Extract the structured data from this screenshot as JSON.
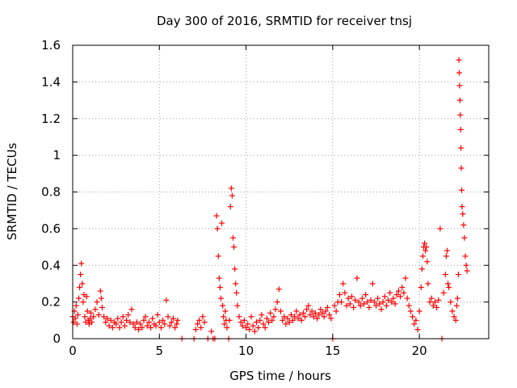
{
  "chart_data": {
    "type": "scatter",
    "title": "Day 300 of 2016, SRMTID for receiver tnsj",
    "xlabel": "GPS time / hours",
    "ylabel": "SRMTID / TECUs",
    "xlim": [
      0,
      24
    ],
    "ylim": [
      0,
      1.6
    ],
    "x_ticks": [
      0,
      5,
      10,
      15,
      20
    ],
    "x_tick_labels": [
      "0",
      "5",
      "10",
      "15",
      "20"
    ],
    "y_ticks": [
      0,
      0.2,
      0.4,
      0.6,
      0.8,
      1.0,
      1.2,
      1.4,
      1.6
    ],
    "y_tick_labels": [
      "0",
      "0.2",
      "0.4",
      "0.6",
      "0.8",
      "1",
      "1.2",
      "1.4",
      "1.6"
    ],
    "grid": true,
    "marker": "+",
    "color": "#ff0000",
    "series": [
      {
        "name": "SRMTID",
        "points": [
          [
            0.0,
            0.12
          ],
          [
            0.05,
            0.09
          ],
          [
            0.1,
            0.15
          ],
          [
            0.15,
            0.11
          ],
          [
            0.2,
            0.18
          ],
          [
            0.25,
            0.08
          ],
          [
            0.3,
            0.13
          ],
          [
            0.35,
            0.22
          ],
          [
            0.4,
            0.28
          ],
          [
            0.45,
            0.35
          ],
          [
            0.5,
            0.41
          ],
          [
            0.55,
            0.3
          ],
          [
            0.6,
            0.2
          ],
          [
            0.65,
            0.24
          ],
          [
            0.7,
            0.12
          ],
          [
            0.75,
            0.09
          ],
          [
            0.8,
            0.23
          ],
          [
            0.85,
            0.15
          ],
          [
            0.9,
            0.1
          ],
          [
            0.95,
            0.08
          ],
          [
            1.0,
            0.11
          ],
          [
            1.05,
            0.14
          ],
          [
            1.1,
            0.09
          ],
          [
            1.2,
            0.12
          ],
          [
            1.3,
            0.16
          ],
          [
            1.4,
            0.2
          ],
          [
            1.5,
            0.13
          ],
          [
            1.6,
            0.26
          ],
          [
            1.65,
            0.22
          ],
          [
            1.7,
            0.17
          ],
          [
            1.8,
            0.12
          ],
          [
            1.9,
            0.09
          ],
          [
            2.0,
            0.11
          ],
          [
            2.1,
            0.07
          ],
          [
            2.2,
            0.1
          ],
          [
            2.3,
            0.06
          ],
          [
            2.4,
            0.09
          ],
          [
            2.5,
            0.08
          ],
          [
            2.6,
            0.11
          ],
          [
            2.7,
            0.06
          ],
          [
            2.8,
            0.09
          ],
          [
            2.9,
            0.12
          ],
          [
            3.0,
            0.07
          ],
          [
            3.1,
            0.1
          ],
          [
            3.2,
            0.13
          ],
          [
            3.3,
            0.09
          ],
          [
            3.4,
            0.16
          ],
          [
            3.5,
            0.08
          ],
          [
            3.6,
            0.06
          ],
          [
            3.7,
            0.09
          ],
          [
            3.8,
            0.05
          ],
          [
            3.9,
            0.08
          ],
          [
            4.0,
            0.06
          ],
          [
            4.1,
            0.1
          ],
          [
            4.2,
            0.12
          ],
          [
            4.3,
            0.07
          ],
          [
            4.4,
            0.09
          ],
          [
            4.5,
            0.06
          ],
          [
            4.6,
            0.11
          ],
          [
            4.7,
            0.08
          ],
          [
            4.8,
            0.07
          ],
          [
            4.9,
            0.13
          ],
          [
            5.0,
            0.09
          ],
          [
            5.1,
            0.06
          ],
          [
            5.2,
            0.1
          ],
          [
            5.3,
            0.08
          ],
          [
            5.4,
            0.21
          ],
          [
            5.5,
            0.12
          ],
          [
            5.6,
            0.07
          ],
          [
            5.7,
            0.09
          ],
          [
            5.8,
            0.11
          ],
          [
            5.9,
            0.06
          ],
          [
            6.0,
            0.08
          ],
          [
            6.05,
            0.1
          ],
          [
            6.3,
            0.0
          ],
          [
            7.0,
            0.0
          ],
          [
            7.1,
            0.05
          ],
          [
            7.2,
            0.08
          ],
          [
            7.3,
            0.1
          ],
          [
            7.4,
            0.06
          ],
          [
            7.5,
            0.12
          ],
          [
            7.6,
            0.09
          ],
          [
            7.8,
            0.0
          ],
          [
            8.0,
            0.04
          ],
          [
            8.1,
            0.0
          ],
          [
            8.2,
            0.0
          ],
          [
            8.3,
            0.67
          ],
          [
            8.35,
            0.6
          ],
          [
            8.4,
            0.45
          ],
          [
            8.45,
            0.33
          ],
          [
            8.5,
            0.28
          ],
          [
            8.55,
            0.22
          ],
          [
            8.6,
            0.63
          ],
          [
            8.65,
            0.18
          ],
          [
            8.7,
            0.12
          ],
          [
            8.75,
            0.08
          ],
          [
            8.8,
            0.15
          ],
          [
            8.85,
            0.1
          ],
          [
            8.9,
            0.06
          ],
          [
            9.0,
            0.0
          ],
          [
            9.05,
            0.1
          ],
          [
            9.1,
            0.72
          ],
          [
            9.15,
            0.82
          ],
          [
            9.2,
            0.78
          ],
          [
            9.25,
            0.55
          ],
          [
            9.3,
            0.5
          ],
          [
            9.35,
            0.38
          ],
          [
            9.4,
            0.3
          ],
          [
            9.45,
            0.25
          ],
          [
            9.5,
            0.18
          ],
          [
            9.6,
            0.12
          ],
          [
            9.7,
            0.09
          ],
          [
            9.8,
            0.07
          ],
          [
            9.9,
            0.1
          ],
          [
            10.0,
            0.06
          ],
          [
            10.1,
            0.08
          ],
          [
            10.2,
            0.05
          ],
          [
            10.3,
            0.12
          ],
          [
            10.4,
            0.07
          ],
          [
            10.5,
            0.04
          ],
          [
            10.6,
            0.09
          ],
          [
            10.7,
            0.06
          ],
          [
            10.8,
            0.1
          ],
          [
            10.9,
            0.13
          ],
          [
            11.0,
            0.08
          ],
          [
            11.1,
            0.06
          ],
          [
            11.2,
            0.11
          ],
          [
            11.3,
            0.09
          ],
          [
            11.4,
            0.14
          ],
          [
            11.5,
            0.1
          ],
          [
            11.6,
            0.12
          ],
          [
            11.7,
            0.16
          ],
          [
            11.8,
            0.2
          ],
          [
            11.9,
            0.27
          ],
          [
            12.0,
            0.15
          ],
          [
            12.1,
            0.1
          ],
          [
            12.2,
            0.12
          ],
          [
            12.3,
            0.08
          ],
          [
            12.4,
            0.11
          ],
          [
            12.5,
            0.09
          ],
          [
            12.6,
            0.13
          ],
          [
            12.7,
            0.1
          ],
          [
            12.8,
            0.12
          ],
          [
            12.9,
            0.15
          ],
          [
            13.0,
            0.11
          ],
          [
            13.1,
            0.13
          ],
          [
            13.2,
            0.1
          ],
          [
            13.3,
            0.14
          ],
          [
            13.4,
            0.12
          ],
          [
            13.5,
            0.16
          ],
          [
            13.6,
            0.18
          ],
          [
            13.7,
            0.13
          ],
          [
            13.8,
            0.15
          ],
          [
            13.9,
            0.12
          ],
          [
            14.0,
            0.14
          ],
          [
            14.1,
            0.11
          ],
          [
            14.2,
            0.13
          ],
          [
            14.3,
            0.16
          ],
          [
            14.4,
            0.14
          ],
          [
            14.5,
            0.12
          ],
          [
            14.6,
            0.15
          ],
          [
            14.7,
            0.17
          ],
          [
            14.8,
            0.13
          ],
          [
            14.9,
            0.11
          ],
          [
            15.0,
            0.0
          ],
          [
            15.1,
            0.18
          ],
          [
            15.2,
            0.15
          ],
          [
            15.3,
            0.2
          ],
          [
            15.4,
            0.24
          ],
          [
            15.5,
            0.2
          ],
          [
            15.6,
            0.3
          ],
          [
            15.7,
            0.25
          ],
          [
            15.8,
            0.18
          ],
          [
            15.9,
            0.22
          ],
          [
            16.0,
            0.19
          ],
          [
            16.1,
            0.23
          ],
          [
            16.2,
            0.17
          ],
          [
            16.3,
            0.21
          ],
          [
            16.4,
            0.33
          ],
          [
            16.5,
            0.2
          ],
          [
            16.6,
            0.18
          ],
          [
            16.7,
            0.22
          ],
          [
            16.8,
            0.19
          ],
          [
            16.9,
            0.24
          ],
          [
            17.0,
            0.2
          ],
          [
            17.1,
            0.17
          ],
          [
            17.2,
            0.21
          ],
          [
            17.3,
            0.3
          ],
          [
            17.4,
            0.2
          ],
          [
            17.5,
            0.18
          ],
          [
            17.6,
            0.22
          ],
          [
            17.7,
            0.19
          ],
          [
            17.8,
            0.16
          ],
          [
            17.9,
            0.2
          ],
          [
            18.0,
            0.23
          ],
          [
            18.1,
            0.18
          ],
          [
            18.2,
            0.21
          ],
          [
            18.3,
            0.25
          ],
          [
            18.4,
            0.2
          ],
          [
            18.5,
            0.22
          ],
          [
            18.6,
            0.19
          ],
          [
            18.7,
            0.24
          ],
          [
            18.8,
            0.26
          ],
          [
            18.9,
            0.23
          ],
          [
            19.0,
            0.28
          ],
          [
            19.1,
            0.25
          ],
          [
            19.2,
            0.33
          ],
          [
            19.3,
            0.22
          ],
          [
            19.4,
            0.18
          ],
          [
            19.5,
            0.15
          ],
          [
            19.6,
            0.12
          ],
          [
            19.7,
            0.08
          ],
          [
            19.8,
            0.1
          ],
          [
            19.9,
            0.05
          ],
          [
            20.0,
            0.15
          ],
          [
            20.1,
            0.28
          ],
          [
            20.15,
            0.38
          ],
          [
            20.2,
            0.45
          ],
          [
            20.25,
            0.5
          ],
          [
            20.3,
            0.52
          ],
          [
            20.35,
            0.48
          ],
          [
            20.4,
            0.5
          ],
          [
            20.45,
            0.42
          ],
          [
            20.5,
            0.3
          ],
          [
            20.6,
            0.2
          ],
          [
            20.7,
            0.22
          ],
          [
            20.8,
            0.18
          ],
          [
            20.9,
            0.2
          ],
          [
            21.0,
            0.17
          ],
          [
            21.1,
            0.21
          ],
          [
            21.2,
            0.6
          ],
          [
            21.3,
            0.0
          ],
          [
            21.4,
            0.25
          ],
          [
            21.5,
            0.35
          ],
          [
            21.55,
            0.45
          ],
          [
            21.6,
            0.48
          ],
          [
            21.65,
            0.3
          ],
          [
            21.7,
            0.28
          ],
          [
            21.8,
            0.2
          ],
          [
            21.9,
            0.15
          ],
          [
            22.0,
            0.12
          ],
          [
            22.1,
            0.1
          ],
          [
            22.15,
            0.18
          ],
          [
            22.2,
            0.22
          ],
          [
            22.25,
            0.35
          ],
          [
            22.28,
            1.52
          ],
          [
            22.3,
            1.45
          ],
          [
            22.32,
            1.38
          ],
          [
            22.34,
            1.3
          ],
          [
            22.36,
            1.22
          ],
          [
            22.38,
            1.14
          ],
          [
            22.4,
            1.04
          ],
          [
            22.42,
            0.93
          ],
          [
            22.44,
            0.81
          ],
          [
            22.46,
            0.72
          ],
          [
            22.5,
            0.68
          ],
          [
            22.55,
            0.62
          ],
          [
            22.6,
            0.55
          ],
          [
            22.65,
            0.45
          ],
          [
            22.7,
            0.4
          ],
          [
            22.75,
            0.37
          ]
        ]
      }
    ]
  }
}
